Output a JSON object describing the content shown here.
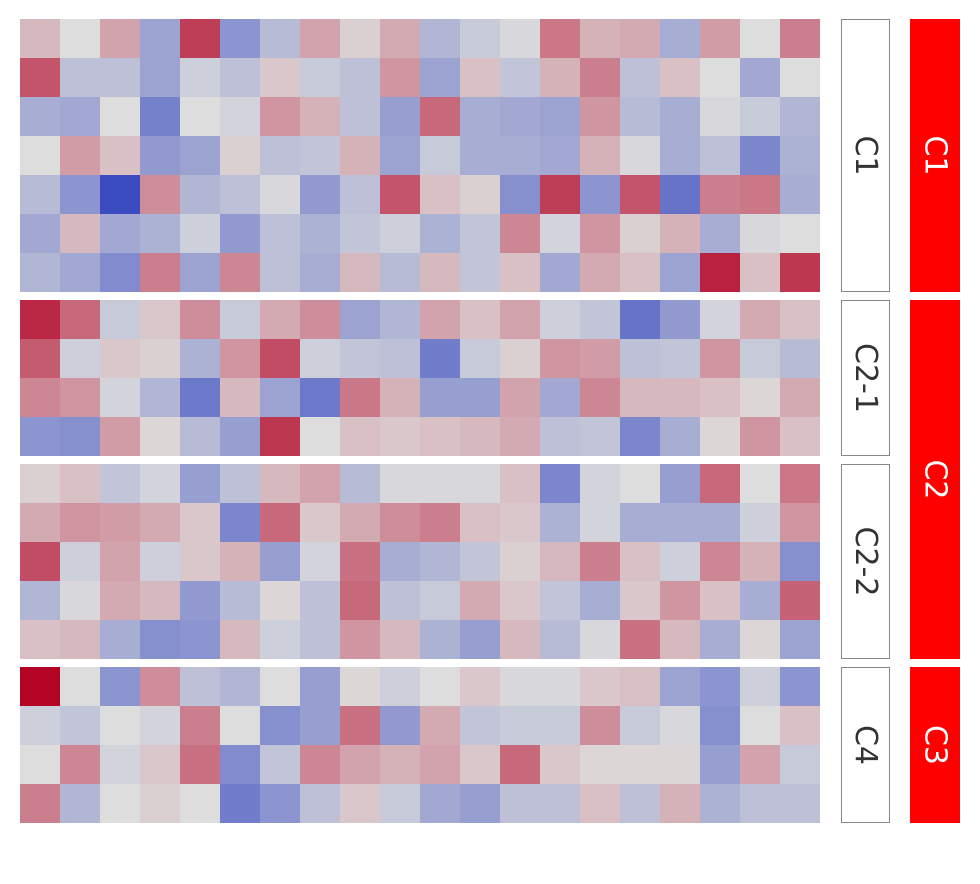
{
  "chart_data": {
    "type": "heatmap",
    "n_columns": 20,
    "colormap": {
      "name": "coolwarm",
      "low": "#3b4cc0",
      "mid": "#dddddd",
      "high": "#b40426"
    },
    "value_range": [
      -3,
      3
    ],
    "row_blocks": [
      {
        "label": "C1",
        "group": "C1",
        "rows": [
          [
            0.5,
            0.0,
            0.8,
            -1.2,
            2.2,
            -1.5,
            -0.7,
            0.8,
            0.2,
            0.7,
            -0.8,
            -0.4,
            -0.1,
            1.4,
            0.6,
            0.7,
            -1.0,
            0.9,
            0.0,
            1.3
          ],
          [
            1.9,
            -0.6,
            -0.6,
            -1.2,
            -0.3,
            -0.6,
            0.3,
            -0.4,
            -0.6,
            1.0,
            -1.2,
            0.4,
            -0.5,
            0.6,
            1.3,
            -0.6,
            0.4,
            0.0,
            -1.1,
            0.0
          ],
          [
            -1.0,
            -1.1,
            0.0,
            -1.9,
            0.0,
            -0.2,
            1.0,
            0.6,
            -0.6,
            -1.3,
            1.6,
            -1.0,
            -1.1,
            -1.2,
            1.0,
            -0.7,
            -1.0,
            -0.1,
            -0.4,
            -0.8
          ],
          [
            0.0,
            0.9,
            0.4,
            -1.4,
            -1.2,
            0.2,
            -0.6,
            -0.5,
            0.6,
            -1.2,
            -0.4,
            -1.0,
            -1.0,
            -1.1,
            0.6,
            -0.1,
            -1.0,
            -0.6,
            -1.8,
            -0.9
          ],
          [
            -0.7,
            -1.5,
            -3.0,
            1.1,
            -0.8,
            -0.6,
            -0.1,
            -1.4,
            -0.6,
            1.9,
            0.4,
            0.2,
            -1.6,
            2.2,
            -1.5,
            1.9,
            -2.2,
            1.3,
            1.4,
            -1.0
          ],
          [
            -1.1,
            0.5,
            -1.1,
            -0.9,
            -0.3,
            -1.4,
            -0.6,
            -0.9,
            -0.5,
            -0.3,
            -0.9,
            -0.5,
            1.2,
            -0.2,
            1.0,
            0.2,
            0.6,
            -1.0,
            -0.1,
            0.0
          ],
          [
            -0.8,
            -1.1,
            -1.7,
            1.3,
            -1.2,
            1.2,
            -0.6,
            -1.0,
            0.5,
            -0.7,
            0.5,
            -0.5,
            0.4,
            -1.1,
            0.7,
            0.4,
            -1.2,
            2.6,
            0.4,
            2.3
          ]
        ]
      },
      {
        "label": "C2-1",
        "group": "C2",
        "rows": [
          [
            2.5,
            1.6,
            -0.4,
            0.3,
            1.1,
            -0.4,
            0.7,
            1.1,
            -1.2,
            -0.8,
            0.8,
            0.4,
            0.8,
            -0.3,
            -0.5,
            -2.2,
            -1.4,
            -0.2,
            0.7,
            0.4
          ],
          [
            1.8,
            -0.3,
            0.3,
            0.2,
            -0.9,
            1.0,
            2.0,
            -0.3,
            -0.5,
            -0.6,
            -2.0,
            -0.4,
            0.2,
            1.0,
            0.9,
            -0.6,
            -0.5,
            1.0,
            -0.4,
            -0.7
          ],
          [
            1.2,
            1.0,
            -0.2,
            -0.8,
            -2.1,
            0.5,
            -1.2,
            -2.1,
            1.4,
            0.6,
            -1.3,
            -1.3,
            0.8,
            -1.1,
            1.2,
            0.5,
            0.5,
            0.4,
            0.1,
            0.7
          ],
          [
            -1.5,
            -1.6,
            0.9,
            0.1,
            -0.7,
            -1.3,
            2.3,
            0.0,
            0.4,
            0.3,
            0.4,
            0.5,
            0.7,
            -0.6,
            -0.5,
            -1.8,
            -1.0,
            0.1,
            1.0,
            0.4
          ]
        ]
      },
      {
        "label": "C2-2",
        "group": "C2",
        "rows": [
          [
            0.2,
            0.4,
            -0.5,
            -0.2,
            -1.3,
            -0.6,
            0.5,
            0.8,
            -0.7,
            -0.1,
            -0.1,
            -0.1,
            0.4,
            -1.8,
            -0.2,
            0.0,
            -1.3,
            1.6,
            0.0,
            1.4
          ],
          [
            0.7,
            1.0,
            0.9,
            0.7,
            0.3,
            -1.8,
            1.6,
            0.3,
            0.7,
            1.1,
            1.3,
            0.4,
            0.3,
            -0.9,
            -0.2,
            -1.0,
            -1.0,
            -1.0,
            -0.3,
            1.0
          ],
          [
            2.0,
            -0.3,
            0.8,
            -0.3,
            0.3,
            0.6,
            -1.3,
            -0.2,
            1.5,
            -1.0,
            -0.8,
            -0.5,
            0.2,
            0.5,
            1.3,
            0.4,
            -0.3,
            1.2,
            0.6,
            -1.6
          ],
          [
            -0.8,
            -0.1,
            0.7,
            0.5,
            -1.4,
            -0.7,
            0.1,
            -0.6,
            1.6,
            -0.6,
            -0.4,
            0.7,
            0.3,
            -0.5,
            -1.0,
            0.3,
            1.0,
            0.4,
            -1.0,
            1.7
          ],
          [
            0.4,
            0.5,
            -1.0,
            -1.6,
            -1.5,
            0.5,
            -0.3,
            -0.6,
            1.0,
            0.5,
            -0.9,
            -1.3,
            0.5,
            -0.7,
            -0.1,
            1.5,
            0.5,
            -1.0,
            0.1,
            -1.2
          ]
        ]
      },
      {
        "label": "C4",
        "group": "C3",
        "rows": [
          [
            3.0,
            0.0,
            -1.5,
            1.1,
            -0.6,
            -0.8,
            0.0,
            -1.3,
            0.1,
            -0.3,
            0.0,
            0.3,
            -0.1,
            -0.1,
            0.3,
            0.4,
            -1.2,
            -1.5,
            -0.3,
            -1.5
          ],
          [
            -0.3,
            -0.5,
            0.0,
            -0.2,
            1.3,
            0.0,
            -1.6,
            -1.3,
            1.5,
            -1.4,
            0.7,
            -0.5,
            -0.4,
            -0.4,
            1.1,
            -0.4,
            -0.1,
            -1.6,
            0.0,
            0.4
          ],
          [
            0.0,
            1.2,
            -0.2,
            0.3,
            1.5,
            -1.7,
            -0.5,
            1.2,
            0.8,
            0.6,
            0.8,
            0.3,
            1.6,
            0.3,
            0.1,
            0.1,
            0.1,
            -1.3,
            0.8,
            -0.4
          ],
          [
            1.3,
            -0.8,
            0.0,
            0.2,
            0.0,
            -2.0,
            -1.5,
            -0.6,
            0.3,
            -0.4,
            -1.1,
            -1.3,
            -0.6,
            -0.6,
            0.4,
            -0.6,
            0.6,
            -0.9,
            -0.6,
            -0.6
          ]
        ]
      }
    ],
    "groups": [
      {
        "label": "C1",
        "color": "#ff0000"
      },
      {
        "label": "C2",
        "color": "#ff0000"
      },
      {
        "label": "C3",
        "color": "#ff0000"
      }
    ],
    "group_label_color": "#ffffff",
    "row_label_color": "#333333",
    "row_label_border": "#888888"
  }
}
